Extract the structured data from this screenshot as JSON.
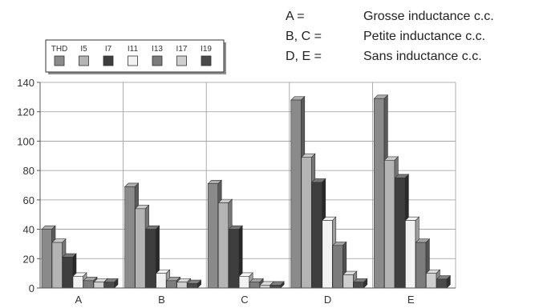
{
  "annotations": [
    {
      "key": "A =",
      "text": "Grosse inductance c.c."
    },
    {
      "key": "B, C =",
      "text": "Petite inductance c.c."
    },
    {
      "key": "D, E =",
      "text": "Sans inductance c.c."
    }
  ],
  "chart_data": {
    "type": "bar",
    "categories": [
      "A",
      "B",
      "C",
      "D",
      "E"
    ],
    "series": [
      {
        "name": "THD",
        "color": "#8a8a8a",
        "values": [
          40,
          69,
          71,
          128,
          129
        ]
      },
      {
        "name": "I5",
        "color": "#b4b4b4",
        "values": [
          31,
          54,
          58,
          89,
          87
        ]
      },
      {
        "name": "I7",
        "color": "#3e3e3e",
        "values": [
          21,
          40,
          40,
          72,
          75
        ]
      },
      {
        "name": "I11",
        "color": "#f2f2f2",
        "values": [
          8,
          10,
          8,
          46,
          46
        ]
      },
      {
        "name": "I13",
        "color": "#7c7c7c",
        "values": [
          5,
          5,
          4,
          29,
          31
        ]
      },
      {
        "name": "I17",
        "color": "#cfcfcf",
        "values": [
          4,
          4,
          2,
          9,
          10
        ]
      },
      {
        "name": "I19",
        "color": "#4a4a4a",
        "values": [
          4,
          3,
          2,
          4,
          6
        ]
      }
    ],
    "yticks": [
      "0",
      "20",
      "40",
      "60",
      "80",
      "100",
      "120",
      "140"
    ],
    "ylim": [
      0,
      140
    ],
    "grid": true,
    "legend_position": "top-left"
  }
}
